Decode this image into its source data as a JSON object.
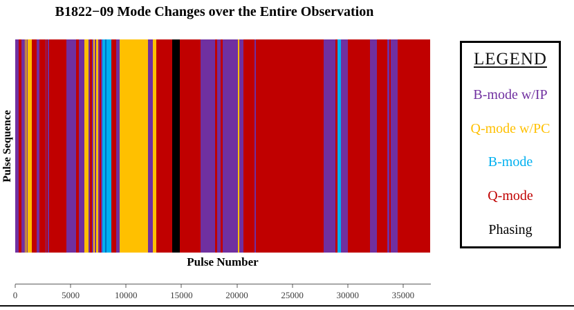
{
  "title": "B1822−09 Mode Changes over the Entire Observation",
  "chart_data": {
    "type": "heatmap",
    "subtype": "single-row categorical mode timeline",
    "title": "B1822−09 Mode Changes over the Entire Observation",
    "xlabel": "Pulse Number",
    "ylabel": "Pulse Sequence",
    "xlim": [
      0,
      37500
    ],
    "x_ticks": [
      0,
      5000,
      10000,
      15000,
      20000,
      25000,
      30000,
      35000
    ],
    "grid": false,
    "legend_position": "right",
    "mode_colors": {
      "bmode_ip": "#7030A0",
      "qmode_pc": "#FFC000",
      "bmode": "#00B0F0",
      "bmode_dark": "#0070C0",
      "qmode": "#C00000",
      "phasing": "#000000"
    },
    "segments": [
      [
        0,
        300,
        "bmode_ip"
      ],
      [
        300,
        550,
        "qmode"
      ],
      [
        550,
        875,
        "bmode_ip"
      ],
      [
        875,
        950,
        "qmode_pc"
      ],
      [
        950,
        1000,
        "bmode_ip"
      ],
      [
        1000,
        1050,
        "qmode_pc"
      ],
      [
        1050,
        1125,
        "bmode_ip"
      ],
      [
        1125,
        1500,
        "qmode_pc"
      ],
      [
        1500,
        1950,
        "qmode"
      ],
      [
        1950,
        2200,
        "bmode_ip"
      ],
      [
        2200,
        2750,
        "qmode"
      ],
      [
        2750,
        2800,
        "bmode_ip"
      ],
      [
        2800,
        2950,
        "qmode"
      ],
      [
        2950,
        3050,
        "bmode_ip"
      ],
      [
        3050,
        4600,
        "qmode"
      ],
      [
        4600,
        5500,
        "bmode_ip"
      ],
      [
        5500,
        5750,
        "qmode"
      ],
      [
        5750,
        6250,
        "bmode_ip"
      ],
      [
        6250,
        6625,
        "qmode_pc"
      ],
      [
        6625,
        6750,
        "bmode_ip"
      ],
      [
        6750,
        6950,
        "qmode"
      ],
      [
        6950,
        7050,
        "bmode_ip"
      ],
      [
        7050,
        7200,
        "qmode_pc"
      ],
      [
        7200,
        7300,
        "bmode_ip"
      ],
      [
        7300,
        7500,
        "qmode_pc"
      ],
      [
        7500,
        7625,
        "bmode_ip"
      ],
      [
        7625,
        7750,
        "qmode"
      ],
      [
        7750,
        7875,
        "bmode_ip"
      ],
      [
        7875,
        8125,
        "bmode"
      ],
      [
        8125,
        8250,
        "bmode_dark"
      ],
      [
        8250,
        8700,
        "bmode"
      ],
      [
        8700,
        9125,
        "qmode"
      ],
      [
        9125,
        9450,
        "bmode_ip"
      ],
      [
        9450,
        12000,
        "qmode_pc"
      ],
      [
        12000,
        12450,
        "bmode_ip"
      ],
      [
        12450,
        12750,
        "qmode_pc"
      ],
      [
        12750,
        14200,
        "qmode"
      ],
      [
        14200,
        14875,
        "phasing"
      ],
      [
        14875,
        16750,
        "qmode"
      ],
      [
        16750,
        18050,
        "bmode_ip"
      ],
      [
        18050,
        18250,
        "qmode"
      ],
      [
        18250,
        18550,
        "bmode_ip"
      ],
      [
        18550,
        18750,
        "qmode"
      ],
      [
        18750,
        20125,
        "bmode_ip"
      ],
      [
        20125,
        20250,
        "qmode_pc"
      ],
      [
        20250,
        20625,
        "bmode_ip"
      ],
      [
        20625,
        21625,
        "qmode"
      ],
      [
        21625,
        21750,
        "bmode_ip"
      ],
      [
        21750,
        27875,
        "qmode"
      ],
      [
        27875,
        28950,
        "bmode_ip"
      ],
      [
        28950,
        29125,
        "qmode"
      ],
      [
        29125,
        29450,
        "bmode"
      ],
      [
        29450,
        30050,
        "bmode_ip"
      ],
      [
        30050,
        32050,
        "qmode"
      ],
      [
        32050,
        32700,
        "bmode_ip"
      ],
      [
        32700,
        33625,
        "qmode"
      ],
      [
        33625,
        33800,
        "bmode_ip"
      ],
      [
        33800,
        33950,
        "qmode"
      ],
      [
        33950,
        34550,
        "bmode_ip"
      ],
      [
        34550,
        37500,
        "qmode"
      ]
    ]
  },
  "axes": {
    "xlabel": "Pulse Number",
    "ylabel": "Pulse Sequence"
  },
  "legend": {
    "title": "LEGEND",
    "entries": [
      {
        "label": "B-mode w/IP",
        "mode": "bmode_ip"
      },
      {
        "label": "Q-mode w/PC",
        "mode": "qmode_pc"
      },
      {
        "label": "B-mode",
        "mode": "bmode"
      },
      {
        "label": "Q-mode",
        "mode": "qmode"
      },
      {
        "label": "Phasing",
        "mode": "phasing"
      }
    ]
  }
}
